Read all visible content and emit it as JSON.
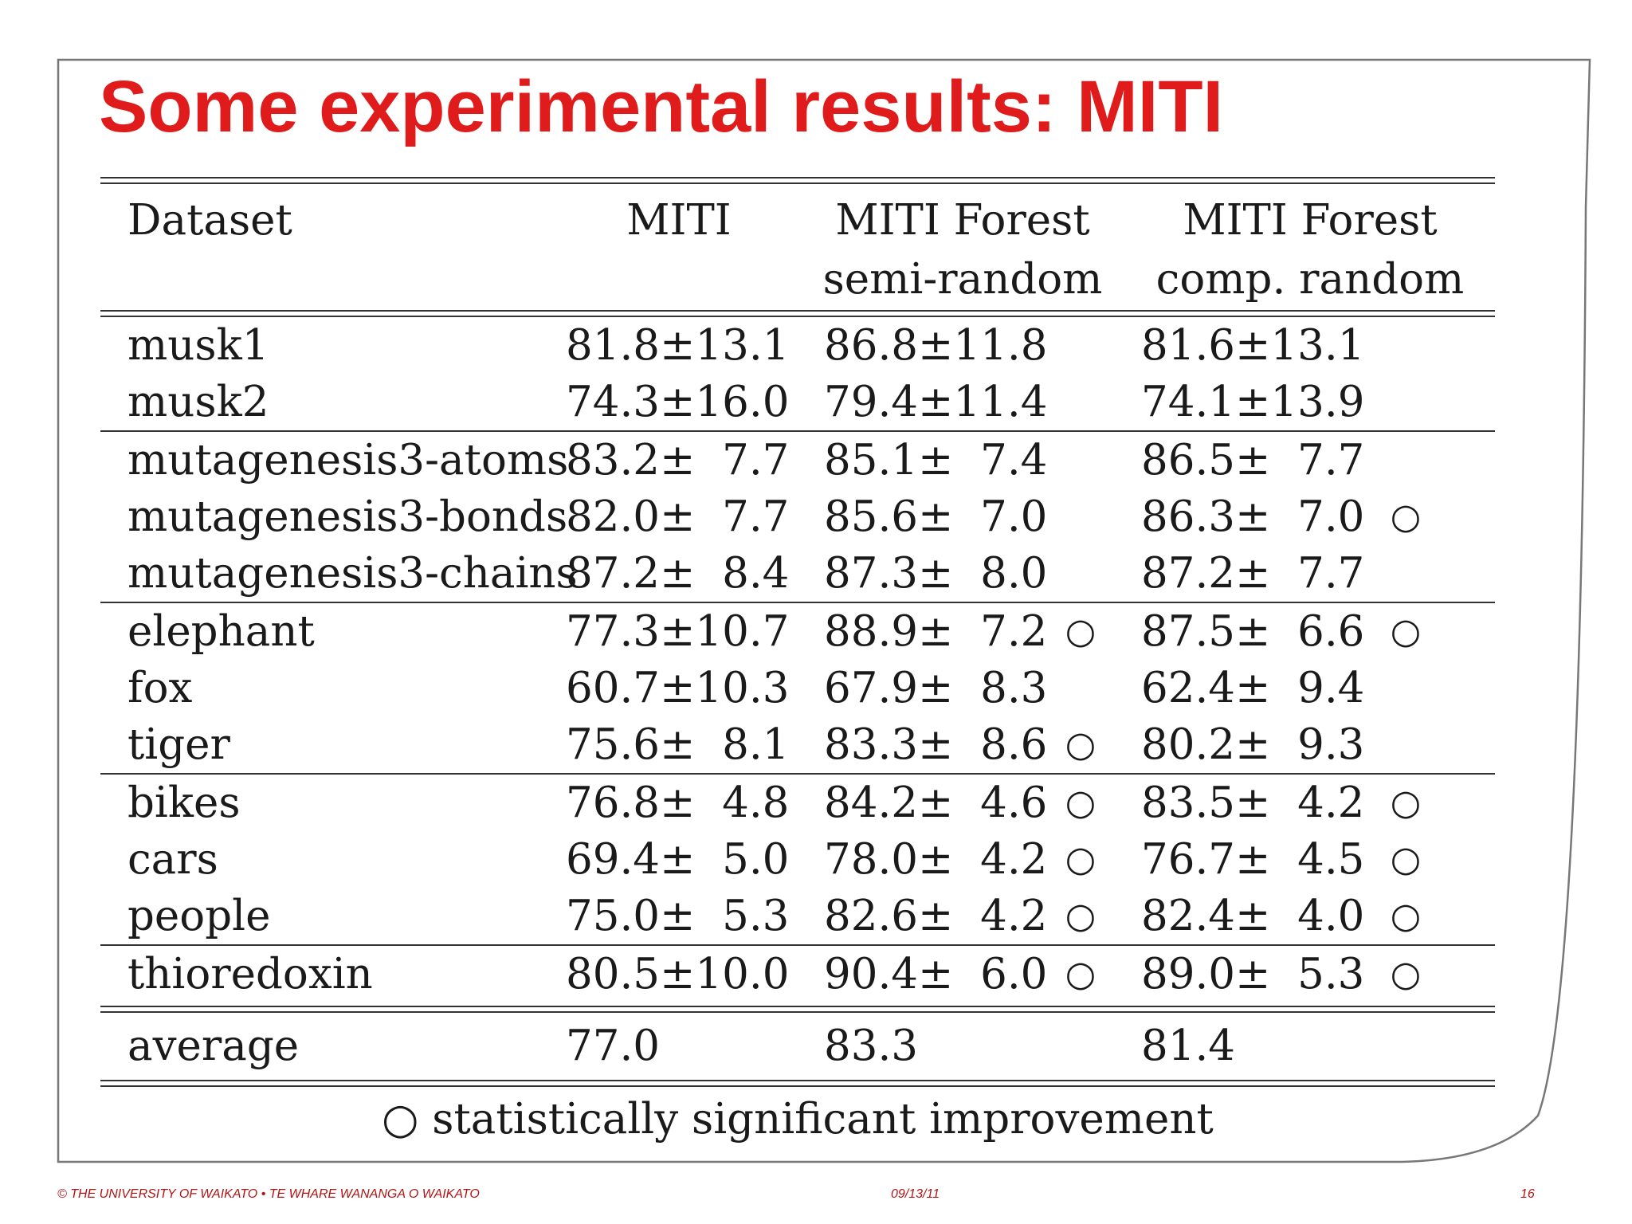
{
  "slide": {
    "title": "Some experimental results: MITI",
    "footer_left": "© THE UNIVERSITY OF WAIKATO  •  TE WHARE WANANGA O WAIKATO",
    "footer_date": "09/13/11",
    "footer_page": "16"
  },
  "table": {
    "headers": {
      "dataset": "Dataset",
      "miti": "MITI",
      "semi_1": "MITI Forest",
      "semi_2": "semi-random",
      "comp_1": "MITI Forest",
      "comp_2": "comp. random"
    },
    "groups": [
      [
        {
          "name": "musk1",
          "miti": "81.8±13.1",
          "semi": "86.8±11.8",
          "semi_sig": "",
          "comp": "81.6±13.1",
          "comp_sig": ""
        },
        {
          "name": "musk2",
          "miti": "74.3±16.0",
          "semi": "79.4±11.4",
          "semi_sig": "",
          "comp": "74.1±13.9",
          "comp_sig": ""
        }
      ],
      [
        {
          "name": "mutagenesis3-atoms",
          "miti": "83.2±  7.7",
          "semi": "85.1±  7.4",
          "semi_sig": "",
          "comp": "86.5±  7.7",
          "comp_sig": ""
        },
        {
          "name": "mutagenesis3-bonds",
          "miti": "82.0±  7.7",
          "semi": "85.6±  7.0",
          "semi_sig": "",
          "comp": "86.3±  7.0",
          "comp_sig": "○"
        },
        {
          "name": "mutagenesis3-chains",
          "miti": "87.2±  8.4",
          "semi": "87.3±  8.0",
          "semi_sig": "",
          "comp": "87.2±  7.7",
          "comp_sig": ""
        }
      ],
      [
        {
          "name": "elephant",
          "miti": "77.3±10.7",
          "semi": "88.9±  7.2",
          "semi_sig": "○",
          "comp": "87.5±  6.6",
          "comp_sig": "○"
        },
        {
          "name": "fox",
          "miti": "60.7±10.3",
          "semi": "67.9±  8.3",
          "semi_sig": "",
          "comp": "62.4±  9.4",
          "comp_sig": ""
        },
        {
          "name": "tiger",
          "miti": "75.6±  8.1",
          "semi": "83.3±  8.6",
          "semi_sig": "○",
          "comp": "80.2±  9.3",
          "comp_sig": ""
        }
      ],
      [
        {
          "name": "bikes",
          "miti": "76.8±  4.8",
          "semi": "84.2±  4.6",
          "semi_sig": "○",
          "comp": "83.5±  4.2",
          "comp_sig": "○"
        },
        {
          "name": "cars",
          "miti": "69.4±  5.0",
          "semi": "78.0±  4.2",
          "semi_sig": "○",
          "comp": "76.7±  4.5",
          "comp_sig": "○"
        },
        {
          "name": "people",
          "miti": "75.0±  5.3",
          "semi": "82.6±  4.2",
          "semi_sig": "○",
          "comp": "82.4±  4.0",
          "comp_sig": "○"
        }
      ],
      [
        {
          "name": "thioredoxin",
          "miti": "80.5±10.0",
          "semi": "90.4±  6.0",
          "semi_sig": "○",
          "comp": "89.0±  5.3",
          "comp_sig": "○"
        }
      ]
    ],
    "average": {
      "name": "average",
      "miti": "77.0",
      "semi": "83.3",
      "comp": "81.4"
    },
    "footnote": "○ statistically significant improvement"
  }
}
